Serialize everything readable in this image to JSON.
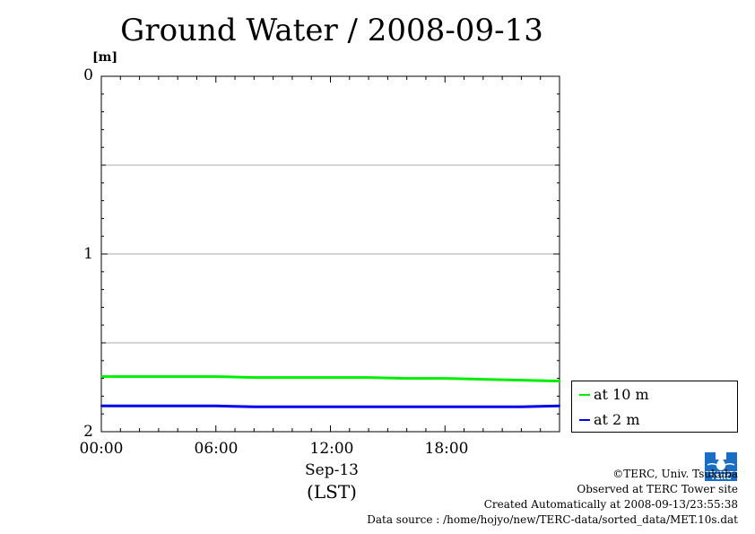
{
  "chart_data": {
    "type": "line",
    "title": "Ground Water / 2008-09-13",
    "ylabel": "[m]",
    "ylim": [
      2,
      0
    ],
    "y_inverted": true,
    "yticks": [
      "0",
      "1",
      "2"
    ],
    "y_minor_gridlines": [
      0.5,
      1.5
    ],
    "xlim": [
      0,
      24
    ],
    "xticks": [
      "00:00",
      "06:00",
      "12:00",
      "18:00"
    ],
    "xticks_hours": [
      0,
      6,
      12,
      18
    ],
    "xlabel_date": "Sep-13",
    "xlabel_tz": "(LST)",
    "grid": true,
    "legend_position": "bottom-right-outside",
    "series": [
      {
        "name": "at 10 m",
        "color": "#00ee00",
        "x": [
          0,
          2,
          4,
          6,
          8,
          10,
          12,
          14,
          16,
          18,
          20,
          22,
          24
        ],
        "values": [
          1.69,
          1.69,
          1.69,
          1.69,
          1.695,
          1.695,
          1.695,
          1.695,
          1.7,
          1.7,
          1.705,
          1.71,
          1.715
        ]
      },
      {
        "name": "at 2 m",
        "color": "#0000ee",
        "x": [
          0,
          2,
          4,
          6,
          8,
          10,
          12,
          14,
          16,
          18,
          20,
          22,
          24
        ],
        "values": [
          1.855,
          1.855,
          1.855,
          1.855,
          1.86,
          1.86,
          1.86,
          1.86,
          1.86,
          1.86,
          1.86,
          1.86,
          1.855
        ]
      }
    ]
  },
  "credits": {
    "copyright": "©TERC, Univ. Tsukuba",
    "observed": "Observed at TERC Tower site",
    "created": "Created Automatically at 2008-09-13/23:55:38",
    "source": "Data source : /home/hojyo/new/TERC-data/sorted_data/MET.10s.dat"
  },
  "logo": {
    "icon": "terc-logo-icon",
    "text": "TERC",
    "color": "#1a6fc4"
  }
}
